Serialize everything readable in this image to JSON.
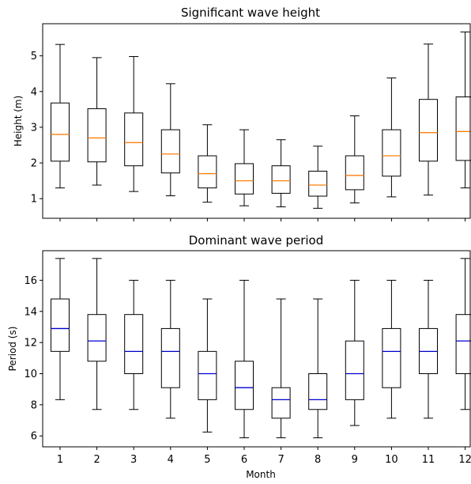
{
  "chart_data": [
    {
      "type": "box",
      "title": "Significant wave height",
      "xlabel": "",
      "ylabel": "Height (m)",
      "ylim": [
        0.45,
        5.9
      ],
      "yticks": [
        1,
        2,
        3,
        4,
        5
      ],
      "categories": [
        "1",
        "2",
        "3",
        "4",
        "5",
        "6",
        "7",
        "8",
        "9",
        "10",
        "11",
        "12"
      ],
      "median_color": "#ff7f0e",
      "boxes": [
        {
          "whislo": 1.3,
          "q1": 2.05,
          "med": 2.8,
          "q3": 3.68,
          "whishi": 5.32
        },
        {
          "whislo": 1.38,
          "q1": 2.03,
          "med": 2.7,
          "q3": 3.52,
          "whishi": 4.95
        },
        {
          "whislo": 1.2,
          "q1": 1.92,
          "med": 2.57,
          "q3": 3.4,
          "whishi": 4.98
        },
        {
          "whislo": 1.08,
          "q1": 1.72,
          "med": 2.25,
          "q3": 2.93,
          "whishi": 4.22
        },
        {
          "whislo": 0.9,
          "q1": 1.3,
          "med": 1.7,
          "q3": 2.2,
          "whishi": 3.07
        },
        {
          "whislo": 0.8,
          "q1": 1.13,
          "med": 1.5,
          "q3": 1.98,
          "whishi": 2.93
        },
        {
          "whislo": 0.77,
          "q1": 1.15,
          "med": 1.5,
          "q3": 1.92,
          "whishi": 2.65
        },
        {
          "whislo": 0.73,
          "q1": 1.07,
          "med": 1.38,
          "q3": 1.77,
          "whishi": 2.47
        },
        {
          "whislo": 0.88,
          "q1": 1.25,
          "med": 1.65,
          "q3": 2.2,
          "whishi": 3.32
        },
        {
          "whislo": 1.05,
          "q1": 1.63,
          "med": 2.2,
          "q3": 2.93,
          "whishi": 4.38
        },
        {
          "whislo": 1.1,
          "q1": 2.05,
          "med": 2.85,
          "q3": 3.78,
          "whishi": 5.33
        },
        {
          "whislo": 1.3,
          "q1": 2.07,
          "med": 2.88,
          "q3": 3.85,
          "whishi": 5.67
        }
      ]
    },
    {
      "type": "box",
      "title": "Dominant wave period",
      "xlabel": "Month",
      "ylabel": "Period (s)",
      "ylim": [
        5.3,
        17.9
      ],
      "yticks": [
        6,
        8,
        10,
        12,
        14,
        16
      ],
      "categories": [
        "1",
        "2",
        "3",
        "4",
        "5",
        "6",
        "7",
        "8",
        "9",
        "10",
        "11",
        "12"
      ],
      "median_color": "#0000cc",
      "boxes": [
        {
          "whislo": 8.33,
          "q1": 11.43,
          "med": 12.9,
          "q3": 14.8,
          "whishi": 17.4
        },
        {
          "whislo": 7.7,
          "q1": 10.8,
          "med": 12.1,
          "q3": 13.8,
          "whishi": 17.4
        },
        {
          "whislo": 7.7,
          "q1": 10.0,
          "med": 11.43,
          "q3": 13.8,
          "whishi": 16.0
        },
        {
          "whislo": 7.14,
          "q1": 9.1,
          "med": 11.43,
          "q3": 12.9,
          "whishi": 16.0
        },
        {
          "whislo": 6.25,
          "q1": 8.33,
          "med": 10.0,
          "q3": 11.43,
          "whishi": 14.8
        },
        {
          "whislo": 5.88,
          "q1": 7.7,
          "med": 9.1,
          "q3": 10.8,
          "whishi": 16.0
        },
        {
          "whislo": 5.88,
          "q1": 7.14,
          "med": 8.33,
          "q3": 9.1,
          "whishi": 14.8
        },
        {
          "whislo": 5.88,
          "q1": 7.7,
          "med": 8.33,
          "q3": 10.0,
          "whishi": 14.8
        },
        {
          "whislo": 6.67,
          "q1": 8.33,
          "med": 10.0,
          "q3": 12.1,
          "whishi": 16.0
        },
        {
          "whislo": 7.14,
          "q1": 9.1,
          "med": 11.43,
          "q3": 12.9,
          "whishi": 16.0
        },
        {
          "whislo": 7.14,
          "q1": 10.0,
          "med": 11.43,
          "q3": 12.9,
          "whishi": 16.0
        },
        {
          "whislo": 7.7,
          "q1": 10.0,
          "med": 12.1,
          "q3": 13.8,
          "whishi": 17.4
        }
      ]
    }
  ]
}
